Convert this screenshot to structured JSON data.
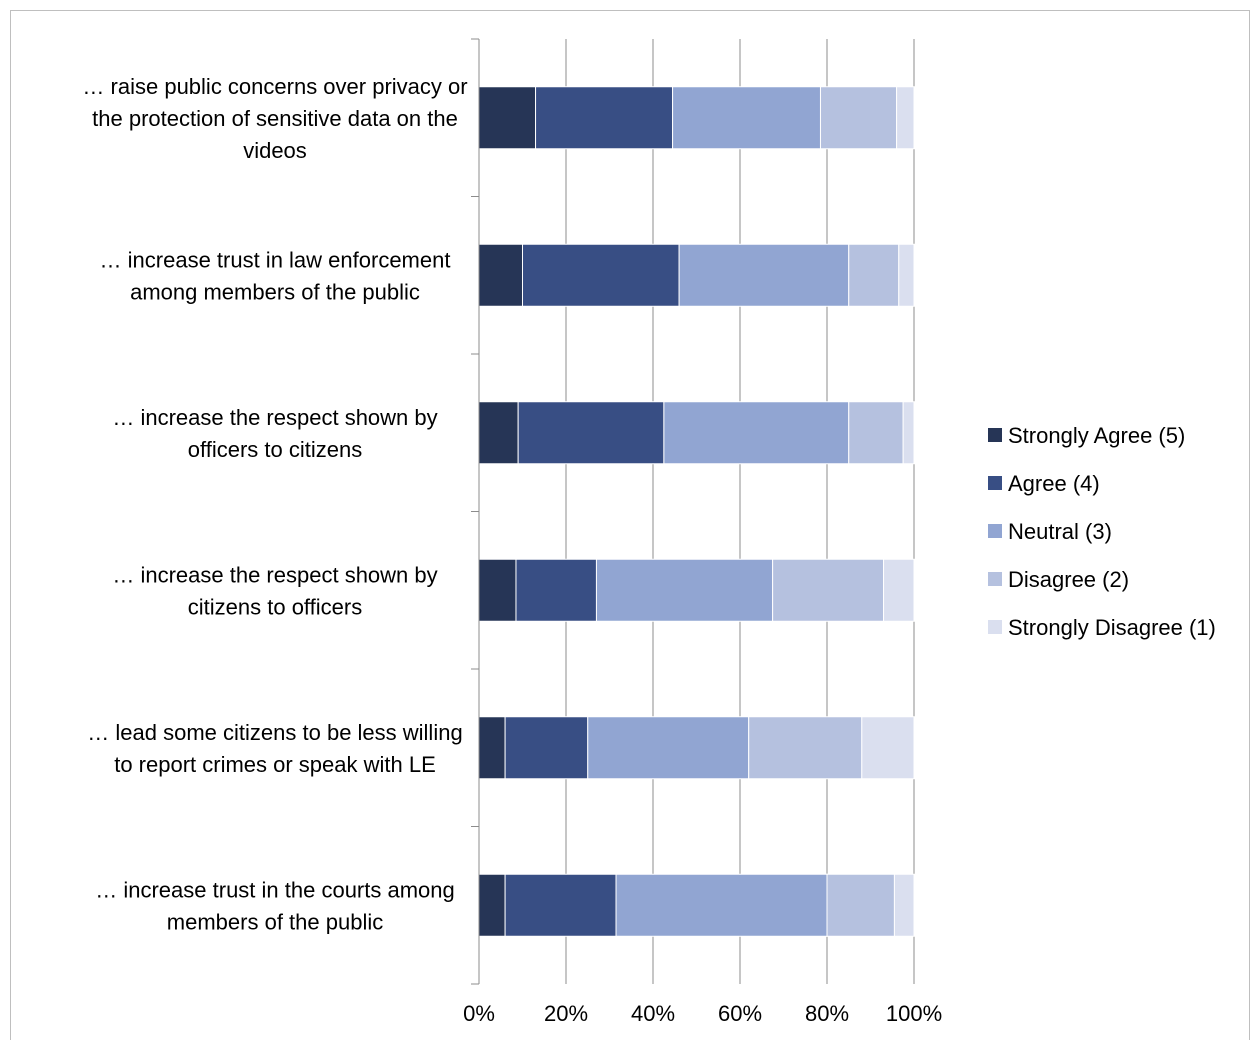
{
  "chart_data": {
    "type": "bar",
    "orientation": "horizontal",
    "stacked": "percent",
    "categories": [
      [
        "… raise public concerns over privacy or",
        "the protection of sensitive data on the",
        "videos"
      ],
      [
        "… increase trust in law enforcement",
        "among members of the public"
      ],
      [
        "… increase the respect shown by",
        "officers to citizens"
      ],
      [
        "… increase the respect shown by",
        "citizens to officers"
      ],
      [
        "… lead some citizens to be less willing",
        "to report crimes or speak with LE"
      ],
      [
        "… increase trust in the courts among",
        "members of the public"
      ]
    ],
    "series": [
      {
        "name": "Strongly Agree (5)",
        "color": "#263556",
        "values": [
          13,
          10,
          9,
          8.5,
          6,
          6
        ]
      },
      {
        "name": "Agree (4)",
        "color": "#384e84",
        "values": [
          31.5,
          36,
          33.5,
          18.5,
          19,
          25.5
        ]
      },
      {
        "name": "Neutral (3)",
        "color": "#91a5d2",
        "values": [
          34,
          39,
          42.5,
          40.5,
          37,
          48.5
        ]
      },
      {
        "name": "Disagree (2)",
        "color": "#b5c1df",
        "values": [
          17.5,
          11.5,
          12.5,
          25.5,
          26,
          15.5
        ]
      },
      {
        "name": "Strongly Disagree (1)",
        "color": "#dadfef",
        "values": [
          4,
          3.5,
          2.5,
          7,
          12,
          4.5
        ]
      }
    ],
    "x_ticks": [
      "0%",
      "20%",
      "40%",
      "60%",
      "80%",
      "100%"
    ],
    "xlim": [
      0,
      100
    ],
    "grid": true,
    "legend_position": "right"
  }
}
